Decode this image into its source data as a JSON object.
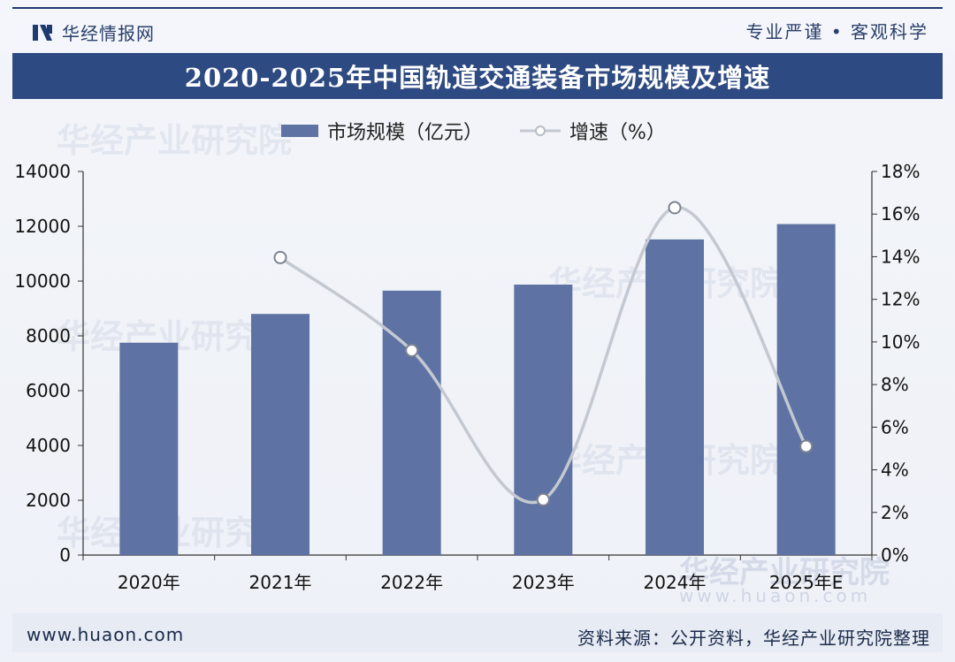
{
  "header": {
    "brand_name": "华经情报网",
    "slogan": "专业严谨 • 客观科学"
  },
  "watermark": {
    "text": "华经产业研究院",
    "url": "www.huaon.com"
  },
  "footer": {
    "website": "www.huaon.com",
    "source": "资料来源：公开资料，华经产业研究院整理"
  },
  "colors": {
    "bar": "#5e73a3",
    "line": "#c4c8d0",
    "title_bar": "#2e4a82",
    "axis_text": "#111111"
  },
  "chart_data": {
    "type": "bar",
    "title": "2020-2025年中国轨道交通装备市场规模及增速",
    "categories": [
      "2020年",
      "2021年",
      "2022年",
      "2023年",
      "2024年",
      "2025年E"
    ],
    "series": [
      {
        "name": "市场规模（亿元）",
        "type": "bar",
        "axis": "left",
        "values": [
          7750,
          8800,
          9650,
          9870,
          11520,
          12080
        ]
      },
      {
        "name": "增速（%）",
        "type": "line",
        "axis": "right",
        "smooth": true,
        "marker": "hollow-circle",
        "values": [
          null,
          13.96,
          9.6,
          2.6,
          16.3,
          5.1
        ]
      }
    ],
    "y_left": {
      "ylim": [
        0,
        14000
      ],
      "ticks": [
        "0",
        "2000",
        "4000",
        "6000",
        "8000",
        "10000",
        "12000",
        "14000"
      ]
    },
    "y_right": {
      "ylim": [
        0,
        18
      ],
      "ticks": [
        "0%",
        "2%",
        "4%",
        "6%",
        "8%",
        "10%",
        "12%",
        "14%",
        "16%",
        "18%"
      ]
    },
    "grid": false,
    "legend_position": "top-center"
  }
}
